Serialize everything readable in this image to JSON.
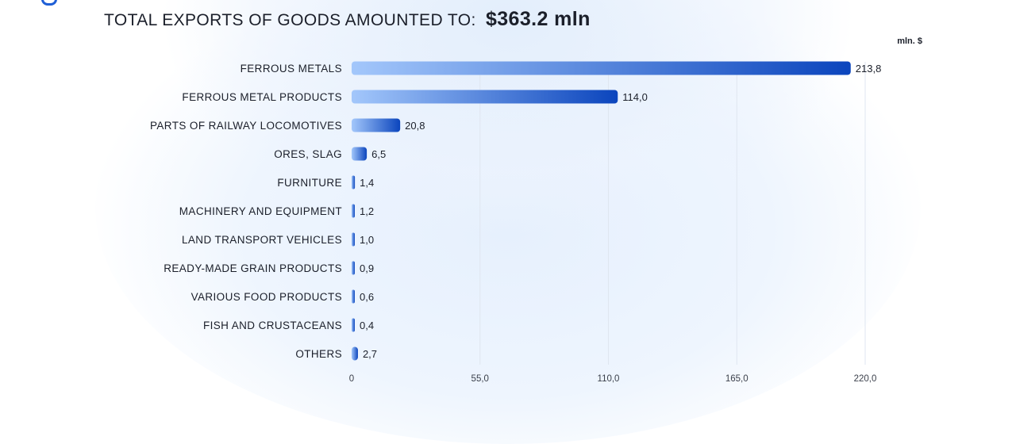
{
  "header": {
    "title_prefix": "TOTAL EXPORTS OF GOODS AMOUNTED TO:",
    "title_amount": "$363.2 mln"
  },
  "colors": {
    "bar_start": "#a3c7fb",
    "bar_end": "#0b45bd",
    "logo": "#1f5fd6"
  },
  "chart_data": {
    "type": "bar",
    "orientation": "horizontal",
    "unit_label": "mln. $",
    "categories": [
      "FERROUS METALS",
      "FERROUS METAL PRODUCTS",
      "PARTS OF RAILWAY LOCOMOTIVES",
      "ORES, SLAG",
      "FURNITURE",
      "MACHINERY AND EQUIPMENT",
      "LAND TRANSPORT VEHICLES",
      "READY-MADE GRAIN PRODUCTS",
      "VARIOUS FOOD PRODUCTS",
      "FISH AND CRUSTACEANS",
      "OTHERS"
    ],
    "values": [
      213.8,
      114.0,
      20.8,
      6.5,
      1.4,
      1.2,
      1.0,
      0.9,
      0.6,
      0.4,
      2.7
    ],
    "value_labels": [
      "213,8",
      "114,0",
      "20,8",
      "6,5",
      "1,4",
      "1,2",
      "1,0",
      "0,9",
      "0,6",
      "0,4",
      "2,7"
    ],
    "xlim": [
      0,
      220
    ],
    "x_ticks": [
      0,
      55,
      110,
      165,
      220
    ],
    "x_tick_labels": [
      "0",
      "55,0",
      "110,0",
      "165,0",
      "220,0"
    ],
    "grid": true
  }
}
